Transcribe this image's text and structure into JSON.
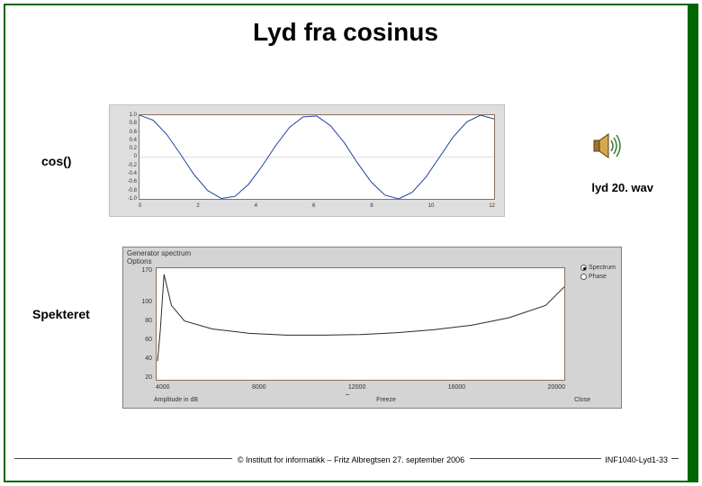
{
  "title": "Lyd fra cosinus",
  "labels": {
    "cos": "cos()",
    "wav": "lyd 20. wav",
    "spekteret": "Spekteret"
  },
  "footer": {
    "center": "© Institutt for informatikk – Fritz Albregtsen 27. september 2006",
    "right": "INF1040-Lyd1-33"
  },
  "cos_chart": {
    "type": "line",
    "bg": "#dedede",
    "plot_bg": "#ffffff",
    "border": "#8b6f5a",
    "line_color": "#2040a0",
    "line_width": 1,
    "xlim": [
      0,
      13
    ],
    "ylim": [
      -1.0,
      1.0
    ],
    "ytick_labels": [
      "1.0",
      "0.8",
      "0.6",
      "0.4",
      "0.2",
      "0",
      "-0.2",
      "-0.4",
      "-0.6",
      "-0.8",
      "-1.0"
    ],
    "xtick_labels": [
      "0",
      "2",
      "4",
      "6",
      "8",
      "10",
      "12"
    ],
    "points_x": [
      0,
      0.5,
      1,
      1.5,
      2,
      2.5,
      3,
      3.5,
      4,
      4.5,
      5,
      5.5,
      6,
      6.5,
      7,
      7.5,
      8,
      8.5,
      9,
      9.5,
      10,
      10.5,
      11,
      11.5,
      12,
      12.5,
      13
    ],
    "points_y": [
      1,
      0.88,
      0.54,
      0.07,
      -0.42,
      -0.8,
      -0.99,
      -0.94,
      -0.65,
      -0.21,
      0.28,
      0.71,
      0.96,
      0.98,
      0.75,
      0.35,
      -0.15,
      -0.6,
      -0.91,
      -1.0,
      -0.84,
      -0.48,
      0.0,
      0.48,
      0.84,
      1.0,
      0.91
    ]
  },
  "spectrum_chart": {
    "type": "line",
    "topbar_left": "Generator spectrum",
    "topbar_options": "Options",
    "radio1": "Spectrum",
    "radio2": "Phase",
    "bg": "#d4d4d4",
    "plot_bg": "#ffffff",
    "border": "#8b6f5a",
    "line_color": "#2a2a2a",
    "line_width": 1,
    "xlim": [
      0,
      22000
    ],
    "ylim": [
      0,
      180
    ],
    "ytick_labels": [
      "170",
      "",
      "100",
      "80",
      "60",
      "40",
      "20"
    ],
    "xtick_labels": [
      "4000",
      "8000",
      "12000",
      "16000",
      "20000"
    ],
    "xlabel": "Frequency",
    "bottombar": {
      "left": "Amplitude in dB",
      "mid": "Freeze",
      "right": "Close"
    },
    "points_x": [
      50,
      200,
      400,
      800,
      1500,
      3000,
      5000,
      7000,
      9000,
      11000,
      13000,
      15000,
      17000,
      19000,
      21000,
      22000
    ],
    "points_y": [
      30,
      80,
      170,
      120,
      95,
      82,
      75,
      72,
      72,
      73,
      76,
      81,
      88,
      100,
      120,
      150
    ]
  },
  "colors": {
    "slide_border": "#006600",
    "green_bar": "#006600",
    "slide_bg": "#ffffff",
    "grid": "#c0c0c0"
  }
}
